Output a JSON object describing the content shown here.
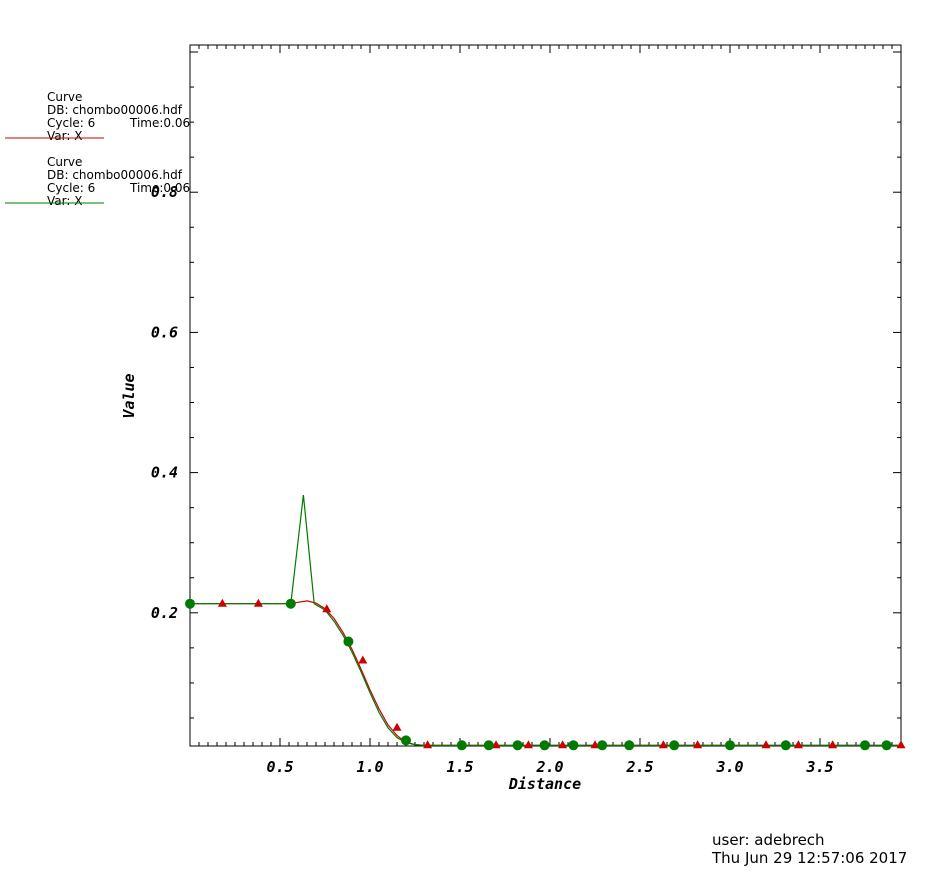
{
  "legend": [
    {
      "title": "Curve",
      "db": "DB: chombo00006.hdf",
      "cycle": "Cycle: 6",
      "time": "Time:0.06",
      "var": "Var: X",
      "color": "#cc0000",
      "marker": "triangle"
    },
    {
      "title": "Curve",
      "db": "DB: chombo00006.hdf",
      "cycle": "Cycle: 6",
      "time": "Time:0.06",
      "var": "Var: X",
      "color": "#007a00",
      "marker": "circle"
    }
  ],
  "user_info": {
    "user": "user: adebrech",
    "date": "Thu Jun 29 12:57:06 2017"
  },
  "chart_data": {
    "type": "line",
    "xlabel": "Distance",
    "ylabel": "Value",
    "xlim": [
      0,
      3.95
    ],
    "ylim": [
      0.01,
      1.01
    ],
    "x_ticks": [
      0.5,
      1.0,
      1.5,
      2.0,
      2.5,
      3.0,
      3.5
    ],
    "x_tick_labels": [
      "0.5",
      "1.0",
      "1.5",
      "2.0",
      "2.5",
      "3.0",
      "3.5"
    ],
    "y_ticks": [
      0.2,
      0.4,
      0.6,
      0.8
    ],
    "y_tick_labels": [
      "0.2",
      "0.4",
      "0.6",
      "0.8"
    ],
    "grid": false,
    "series": [
      {
        "color": "#cc0000",
        "marker": "triangle",
        "x": [
          0,
          0.2,
          0.4,
          0.55,
          0.6,
          0.65,
          0.7,
          0.75,
          0.8,
          0.85,
          0.9,
          0.95,
          1.0,
          1.05,
          1.1,
          1.15,
          1.2,
          1.25,
          1.3,
          1.4,
          1.6,
          2.0,
          2.5,
          3.0,
          3.5,
          3.95
        ],
        "y": [
          0.213,
          0.213,
          0.213,
          0.213,
          0.215,
          0.217,
          0.214,
          0.206,
          0.192,
          0.172,
          0.148,
          0.12,
          0.09,
          0.063,
          0.04,
          0.025,
          0.015,
          0.012,
          0.011,
          0.011,
          0.011,
          0.011,
          0.011,
          0.011,
          0.011,
          0.011
        ],
        "marker_x": [
          0.18,
          0.38,
          0.76,
          0.96,
          1.15,
          1.32,
          1.7,
          1.88,
          2.07,
          2.25,
          2.63,
          2.82,
          3.2,
          3.38,
          3.57,
          3.95
        ],
        "marker_y": [
          0.213,
          0.213,
          0.205,
          0.132,
          0.036,
          0.011,
          0.011,
          0.011,
          0.011,
          0.011,
          0.011,
          0.011,
          0.011,
          0.011,
          0.011,
          0.011
        ]
      },
      {
        "color": "#007a00",
        "marker": "circle",
        "x": [
          0,
          0.56,
          0.63,
          0.69,
          0.75,
          0.8,
          0.85,
          0.9,
          0.95,
          1.0,
          1.05,
          1.1,
          1.15,
          1.2,
          1.25,
          1.3,
          1.5,
          2.0,
          2.5,
          3.0,
          3.5,
          3.95
        ],
        "y": [
          0.213,
          0.213,
          0.368,
          0.213,
          0.204,
          0.188,
          0.168,
          0.144,
          0.116,
          0.086,
          0.058,
          0.036,
          0.022,
          0.015,
          0.012,
          0.011,
          0.011,
          0.011,
          0.011,
          0.011,
          0.011,
          0.011
        ],
        "marker_x": [
          0,
          0.56,
          0.88,
          1.2,
          1.51,
          1.66,
          1.82,
          1.97,
          2.13,
          2.29,
          2.44,
          2.69,
          3.0,
          3.31,
          3.75,
          3.87
        ],
        "marker_y": [
          0.213,
          0.213,
          0.159,
          0.018,
          0.011,
          0.011,
          0.011,
          0.011,
          0.011,
          0.011,
          0.011,
          0.011,
          0.011,
          0.011,
          0.011,
          0.011
        ]
      }
    ]
  }
}
